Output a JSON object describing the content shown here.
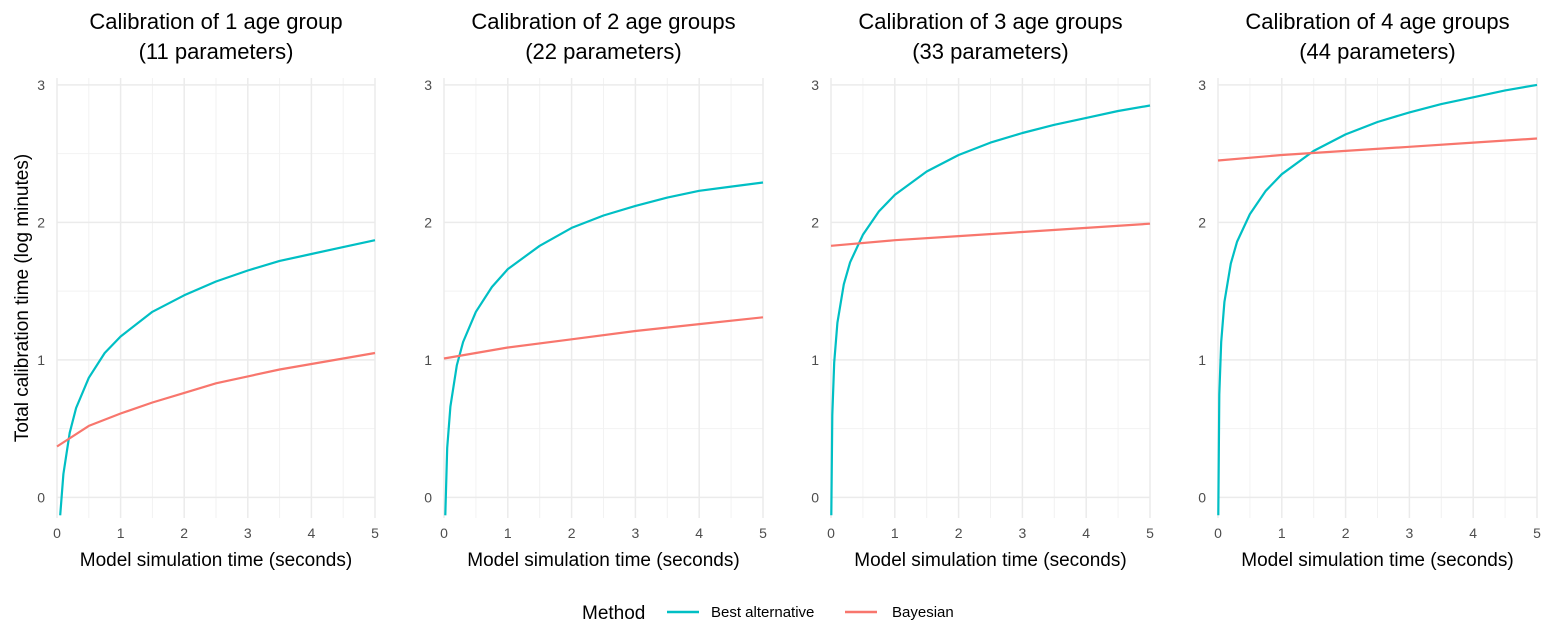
{
  "figure": {
    "ylabel": "Total calibration time (log minutes)",
    "legend": {
      "title": "Method",
      "position": "bottom",
      "items": [
        {
          "label": "Best alternative",
          "color": "#00BFC4"
        },
        {
          "label": "Bayesian",
          "color": "#F8766D"
        }
      ]
    }
  },
  "chart_data": [
    {
      "type": "line",
      "title": "Calibration of 1 age group",
      "subtitle": "(11 parameters)",
      "xlabel": "Model simulation time (seconds)",
      "ylabel": "Total calibration time (log minutes)",
      "xlim": [
        0,
        5
      ],
      "ylim": [
        -0.15,
        3.05
      ],
      "xticks": [
        0,
        1,
        2,
        3,
        4,
        5
      ],
      "yticks": [
        0,
        1,
        2,
        3
      ],
      "grid": true,
      "series": [
        {
          "name": "Best alternative",
          "color": "#00BFC4",
          "x": [
            0.05,
            0.1,
            0.2,
            0.3,
            0.5,
            0.75,
            1,
            1.5,
            2,
            2.5,
            3,
            3.5,
            4,
            4.5,
            5
          ],
          "y": [
            -0.13,
            0.17,
            0.47,
            0.65,
            0.87,
            1.05,
            1.17,
            1.35,
            1.47,
            1.57,
            1.65,
            1.72,
            1.77,
            1.82,
            1.87
          ]
        },
        {
          "name": "Bayesian",
          "color": "#F8766D",
          "x": [
            0,
            0.5,
            1,
            1.5,
            2,
            2.5,
            3,
            3.5,
            4,
            4.5,
            5
          ],
          "y": [
            0.37,
            0.52,
            0.61,
            0.69,
            0.76,
            0.83,
            0.88,
            0.93,
            0.97,
            1.01,
            1.05
          ]
        }
      ]
    },
    {
      "type": "line",
      "title": "Calibration of 2 age groups",
      "subtitle": "(22 parameters)",
      "xlabel": "Model simulation time (seconds)",
      "xlim": [
        0,
        5
      ],
      "ylim": [
        -0.15,
        3.05
      ],
      "xticks": [
        0,
        1,
        2,
        3,
        4,
        5
      ],
      "yticks": [
        0,
        1,
        2,
        3
      ],
      "grid": true,
      "series": [
        {
          "name": "Best alternative",
          "color": "#00BFC4",
          "x": [
            0.02,
            0.05,
            0.1,
            0.2,
            0.3,
            0.5,
            0.75,
            1,
            1.5,
            2,
            2.5,
            3,
            3.5,
            4,
            4.5,
            5
          ],
          "y": [
            -0.13,
            0.36,
            0.66,
            0.96,
            1.13,
            1.35,
            1.53,
            1.66,
            1.83,
            1.96,
            2.05,
            2.12,
            2.18,
            2.23,
            2.26,
            2.29
          ]
        },
        {
          "name": "Bayesian",
          "color": "#F8766D",
          "x": [
            0,
            1,
            2,
            3,
            4,
            5
          ],
          "y": [
            1.01,
            1.09,
            1.15,
            1.21,
            1.26,
            1.31
          ]
        }
      ]
    },
    {
      "type": "line",
      "title": "Calibration of 3 age groups",
      "subtitle": "(33 parameters)",
      "xlabel": "Model simulation time (seconds)",
      "xlim": [
        0,
        5
      ],
      "ylim": [
        -0.15,
        3.05
      ],
      "xticks": [
        0,
        1,
        2,
        3,
        4,
        5
      ],
      "yticks": [
        0,
        1,
        2,
        3
      ],
      "grid": true,
      "series": [
        {
          "name": "Best alternative",
          "color": "#00BFC4",
          "x": [
            0.005,
            0.02,
            0.05,
            0.1,
            0.2,
            0.3,
            0.5,
            0.75,
            1,
            1.5,
            2,
            2.5,
            3,
            3.5,
            4,
            4.5,
            5
          ],
          "y": [
            -0.13,
            0.6,
            0.98,
            1.27,
            1.55,
            1.71,
            1.91,
            2.08,
            2.2,
            2.37,
            2.49,
            2.58,
            2.65,
            2.71,
            2.76,
            2.81,
            2.85
          ]
        },
        {
          "name": "Bayesian",
          "color": "#F8766D",
          "x": [
            0,
            1,
            2,
            3,
            4,
            5
          ],
          "y": [
            1.83,
            1.87,
            1.9,
            1.93,
            1.96,
            1.99
          ]
        }
      ]
    },
    {
      "type": "line",
      "title": "Calibration of 4 age groups",
      "subtitle": "(44 parameters)",
      "xlabel": "Model simulation time (seconds)",
      "xlim": [
        0,
        5
      ],
      "ylim": [
        -0.15,
        3.05
      ],
      "xticks": [
        0,
        1,
        2,
        3,
        4,
        5
      ],
      "yticks": [
        0,
        1,
        2,
        3
      ],
      "grid": true,
      "series": [
        {
          "name": "Best alternative",
          "color": "#00BFC4",
          "x": [
            0.005,
            0.02,
            0.05,
            0.1,
            0.2,
            0.3,
            0.5,
            0.75,
            1,
            1.5,
            2,
            2.5,
            3,
            3.5,
            4,
            4.5,
            5
          ],
          "y": [
            -0.13,
            0.75,
            1.13,
            1.42,
            1.7,
            1.86,
            2.06,
            2.23,
            2.35,
            2.52,
            2.64,
            2.73,
            2.8,
            2.86,
            2.91,
            2.96,
            3.0
          ]
        },
        {
          "name": "Bayesian",
          "color": "#F8766D",
          "x": [
            0,
            1,
            2,
            3,
            4,
            5
          ],
          "y": [
            2.45,
            2.49,
            2.52,
            2.55,
            2.58,
            2.61
          ]
        }
      ]
    }
  ]
}
